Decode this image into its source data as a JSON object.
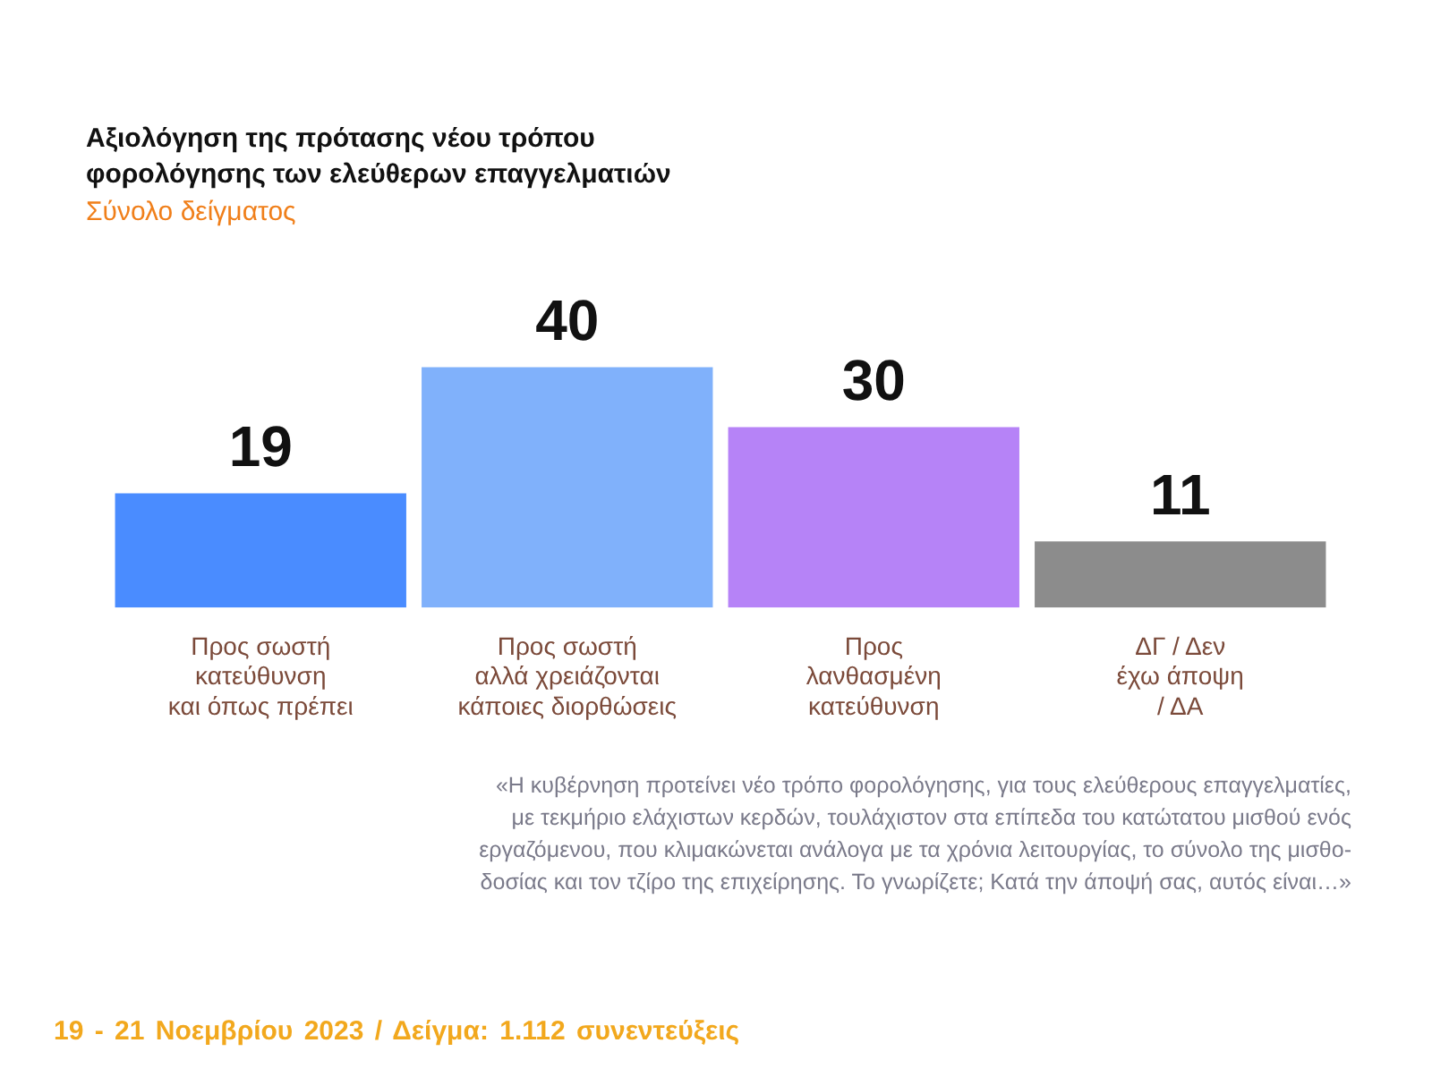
{
  "chart_data": {
    "type": "bar",
    "title": "Αξιολόγηση της πρότασης νέου τρόπου\nφορολόγησης των ελεύθερων επαγγελματιών",
    "subtitle": "Σύνολο δείγματος",
    "categories": [
      "Προς σωστή\nκατεύθυνση\nκαι όπως πρέπει",
      "Προς σωστή\nαλλά χρειάζονται\nκάποιες διορθώσεις",
      "Προς\nλανθασμένη\nκατεύθυνση",
      "ΔΓ / Δεν\nέχω άποψη\n/ ΔΑ"
    ],
    "values": [
      19,
      40,
      30,
      11
    ],
    "colors": [
      "#4a8cff",
      "#80b1fb",
      "#b683f7",
      "#8c8c8c"
    ],
    "data_labels": true,
    "grid": false,
    "legend": false,
    "tick_labels": "x",
    "annotations": [
      "«Η κυβέρνηση προτείνει νέο τρόπο φορολόγησης, για τους ελεύθερους επαγγελματίες,\nμε τεκμήριο ελάχιστων κερδών, τουλάχιστον στα επίπεδα του κατώτατου μισθού ενός\nεργαζόμενου, που κλιμακώνεται ανάλογα με τα χρόνια λειτουργίας, το σύνολο της μισθο-\nδοσίας και τον τζίρο της επιχείρησης. Το γνωρίζετε; Κατά την άποψή σας, αυτός είναι…»",
      "19 - 21 Νοεμβρίου 2023 / Δείγμα: 1.112 συνεντεύξεις"
    ]
  }
}
